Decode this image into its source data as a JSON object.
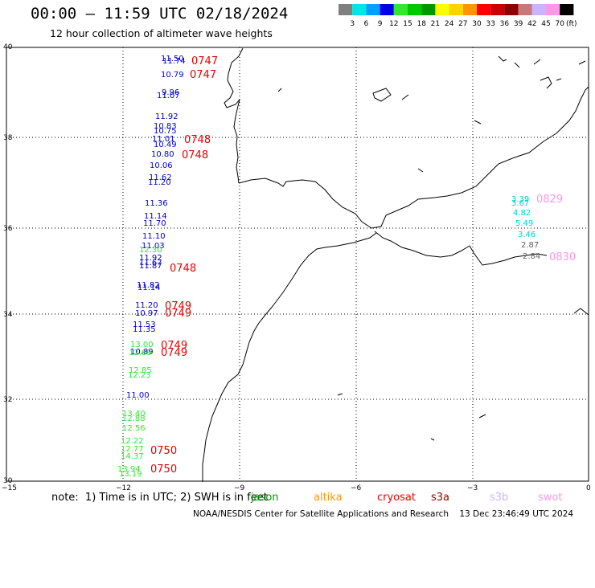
{
  "header": {
    "title": "00:00 – 11:59 UTC 02/18/2024",
    "subtitle": "12 hour collection of altimeter wave heights"
  },
  "colorbar": {
    "unit": "(ft)",
    "bins": [
      {
        "label": "3",
        "color": "#7f7f7f"
      },
      {
        "label": "6",
        "color": "#00e6e6"
      },
      {
        "label": "9",
        "color": "#00a0ff"
      },
      {
        "label": "12",
        "color": "#0000e6"
      },
      {
        "label": "15",
        "color": "#33e633"
      },
      {
        "label": "18",
        "color": "#00c800"
      },
      {
        "label": "21",
        "color": "#009600"
      },
      {
        "label": "24",
        "color": "#ffff00"
      },
      {
        "label": "27",
        "color": "#ffd200"
      },
      {
        "label": "30",
        "color": "#ff9600"
      },
      {
        "label": "33",
        "color": "#ff0000"
      },
      {
        "label": "36",
        "color": "#c80000"
      },
      {
        "label": "39",
        "color": "#8c0000"
      },
      {
        "label": "42",
        "color": "#c87878"
      },
      {
        "label": "45",
        "color": "#c8b4ff"
      },
      {
        "label": "70",
        "color": "#ff96e6"
      },
      {
        "label": "",
        "color": "#000000"
      }
    ]
  },
  "axes": {
    "lon_ticks": [
      "−15",
      "−12",
      "−9",
      "−6",
      "−3",
      "0"
    ],
    "lat_ticks": [
      "40",
      "38",
      "36",
      "34",
      "32",
      "30"
    ]
  },
  "wave_labels": [
    {
      "value": "11.50",
      "color": "#0000c8"
    },
    {
      "value": "11.74",
      "color": "#0000c8"
    },
    {
      "value": "10.79",
      "color": "#0000c8"
    },
    {
      "value": "9.96",
      "color": "#0000c8"
    },
    {
      "value": "11.07",
      "color": "#0000c8"
    },
    {
      "value": "11.92",
      "color": "#0000c8"
    },
    {
      "value": "10.83",
      "color": "#0000c8"
    },
    {
      "value": "10.75",
      "color": "#0000c8"
    },
    {
      "value": "11.01",
      "color": "#0000c8"
    },
    {
      "value": "10.49",
      "color": "#0000c8"
    },
    {
      "value": "10.80",
      "color": "#0000c8"
    },
    {
      "value": "10.06",
      "color": "#0000c8"
    },
    {
      "value": "11.62",
      "color": "#0000c8"
    },
    {
      "value": "11.20",
      "color": "#0000c8"
    },
    {
      "value": "11.36",
      "color": "#0000c8"
    },
    {
      "value": "11.14",
      "color": "#0000c8"
    },
    {
      "value": "11.70",
      "color": "#0000c8"
    },
    {
      "value": "11.10",
      "color": "#0000c8"
    },
    {
      "value": "11.03",
      "color": "#0000c8"
    },
    {
      "value": "12.30",
      "color": "#33e633"
    },
    {
      "value": "11.92",
      "color": "#0000c8"
    },
    {
      "value": "11.67",
      "color": "#0000c8"
    },
    {
      "value": "11.87",
      "color": "#0000c8"
    },
    {
      "value": "11.82",
      "color": "#0000c8"
    },
    {
      "value": "11.14",
      "color": "#0000c8"
    },
    {
      "value": "11.20",
      "color": "#0000c8"
    },
    {
      "value": "10.97",
      "color": "#0000c8"
    },
    {
      "value": "11.53",
      "color": "#0000c8"
    },
    {
      "value": "11.35",
      "color": "#0000c8"
    },
    {
      "value": "13.00",
      "color": "#33e633"
    },
    {
      "value": "10.89",
      "color": "#0000c8"
    },
    {
      "value": "12.69",
      "color": "#33e633"
    },
    {
      "value": "12.85",
      "color": "#33e633"
    },
    {
      "value": "12.23",
      "color": "#33e633"
    },
    {
      "value": "11.00",
      "color": "#0000c8"
    },
    {
      "value": "13.40",
      "color": "#33e633"
    },
    {
      "value": "12.88",
      "color": "#33e633"
    },
    {
      "value": "12.56",
      "color": "#33e633"
    },
    {
      "value": "12.22",
      "color": "#33e633"
    },
    {
      "value": "12.77",
      "color": "#33e633"
    },
    {
      "value": "14.37",
      "color": "#33e633"
    },
    {
      "value": "13.94",
      "color": "#33e633"
    },
    {
      "value": "13.19",
      "color": "#33e633"
    },
    {
      "value": "3.39",
      "color": "#00d2d2"
    },
    {
      "value": "3.67",
      "color": "#00d2d2"
    },
    {
      "value": "4.82",
      "color": "#00d2d2"
    },
    {
      "value": "5.49",
      "color": "#00d2d2"
    },
    {
      "value": "3.46",
      "color": "#00d2d2"
    },
    {
      "value": "2.87",
      "color": "#646464"
    },
    {
      "value": "2.84",
      "color": "#646464"
    }
  ],
  "time_labels": [
    {
      "value": "0747",
      "color": "#e60000"
    },
    {
      "value": "0747",
      "color": "#e60000"
    },
    {
      "value": "0748",
      "color": "#e60000"
    },
    {
      "value": "0748",
      "color": "#e60000"
    },
    {
      "value": "0748",
      "color": "#e60000"
    },
    {
      "value": "0749",
      "color": "#e60000"
    },
    {
      "value": "0749",
      "color": "#e60000"
    },
    {
      "value": "0749",
      "color": "#e60000"
    },
    {
      "value": "0749",
      "color": "#e60000"
    },
    {
      "value": "0750",
      "color": "#e60000"
    },
    {
      "value": "0750",
      "color": "#e60000"
    },
    {
      "value": "0829",
      "color": "#ff96e6"
    },
    {
      "value": "0830",
      "color": "#ff96e6"
    }
  ],
  "footer": {
    "note": "note:  1) Time is in UTC; 2) SWH is in feet",
    "legend": [
      {
        "label": "jason",
        "color": "#009600"
      },
      {
        "label": "altika",
        "color": "#ff9600"
      },
      {
        "label": "cryosat",
        "color": "#ff0000"
      },
      {
        "label": "s3a",
        "color": "#8c0000"
      },
      {
        "label": "s3b",
        "color": "#c8b4ff"
      },
      {
        "label": "swot",
        "color": "#ff96e6"
      }
    ],
    "credit": "NOAA/NESDIS Center for Satellite Applications and Research    13 Dec 23:46:49 UTC 2024"
  }
}
